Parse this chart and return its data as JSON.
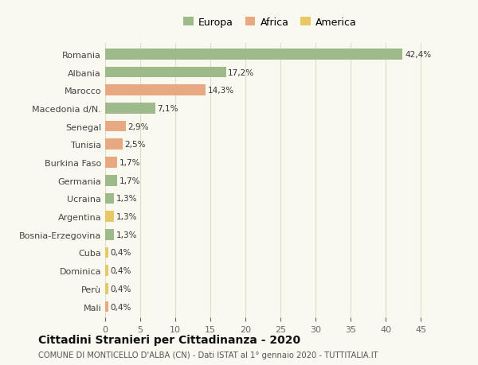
{
  "categories": [
    "Romania",
    "Albania",
    "Marocco",
    "Macedonia d/N.",
    "Senegal",
    "Tunisia",
    "Burkina Faso",
    "Germania",
    "Ucraina",
    "Argentina",
    "Bosnia-Erzegovina",
    "Cuba",
    "Dominica",
    "Perù",
    "Mali"
  ],
  "values": [
    42.4,
    17.2,
    14.3,
    7.1,
    2.9,
    2.5,
    1.7,
    1.7,
    1.3,
    1.3,
    1.3,
    0.4,
    0.4,
    0.4,
    0.4
  ],
  "labels": [
    "42,4%",
    "17,2%",
    "14,3%",
    "7,1%",
    "2,9%",
    "2,5%",
    "1,7%",
    "1,7%",
    "1,3%",
    "1,3%",
    "1,3%",
    "0,4%",
    "0,4%",
    "0,4%",
    "0,4%"
  ],
  "continents": [
    "Europa",
    "Europa",
    "Africa",
    "Europa",
    "Africa",
    "Africa",
    "Africa",
    "Europa",
    "Europa",
    "America",
    "Europa",
    "America",
    "America",
    "America",
    "Africa"
  ],
  "colors": {
    "Europa": "#9eba8a",
    "Africa": "#e8a882",
    "America": "#e8c865"
  },
  "legend_items": [
    {
      "label": "Europa",
      "color": "#9eba8a"
    },
    {
      "label": "Africa",
      "color": "#e8a882"
    },
    {
      "label": "America",
      "color": "#e8c865"
    }
  ],
  "title": "Cittadini Stranieri per Cittadinanza - 2020",
  "subtitle": "COMUNE DI MONTICELLO D'ALBA (CN) - Dati ISTAT al 1° gennaio 2020 - TUTTITALIA.IT",
  "xlim": [
    0,
    47
  ],
  "xticks": [
    0,
    5,
    10,
    15,
    20,
    25,
    30,
    35,
    40,
    45
  ],
  "background_color": "#f9f9f0",
  "plot_background": "#f9f9f0",
  "grid_color": "#ddddcc"
}
